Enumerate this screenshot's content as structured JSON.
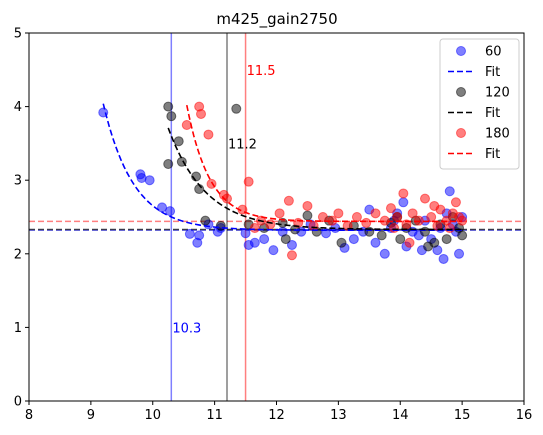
{
  "chart_data": {
    "type": "scatter",
    "title": "m425_gain2750",
    "xlabel": "",
    "ylabel": "",
    "xlim": [
      8,
      16
    ],
    "ylim": [
      0,
      5
    ],
    "xticks": [
      "8",
      "9",
      "10",
      "11",
      "12",
      "13",
      "14",
      "15",
      "16"
    ],
    "yticks": [
      "0",
      "1",
      "2",
      "3",
      "4",
      "5"
    ],
    "grid": false,
    "legend_position": "top-right",
    "series": [
      {
        "name": "60",
        "color": "#0000ff",
        "fit_label": "Fit",
        "threshold_x": 10.3,
        "threshold_label": "10.3",
        "baseline_y": 2.32,
        "fit_curve": {
          "x_start": 9.2,
          "x_end": 15.0,
          "a": 1.72,
          "k": 2.05,
          "x0": 9.2
        },
        "points": [
          [
            9.2,
            3.92
          ],
          [
            9.8,
            3.08
          ],
          [
            9.82,
            3.03
          ],
          [
            9.95,
            3.0
          ],
          [
            10.15,
            2.63
          ],
          [
            10.28,
            2.58
          ],
          [
            10.6,
            2.27
          ],
          [
            10.72,
            2.15
          ],
          [
            10.75,
            2.25
          ],
          [
            10.9,
            2.4
          ],
          [
            11.05,
            2.3
          ],
          [
            11.1,
            2.35
          ],
          [
            11.5,
            2.28
          ],
          [
            11.55,
            2.12
          ],
          [
            11.65,
            2.15
          ],
          [
            11.8,
            2.2
          ],
          [
            11.95,
            2.05
          ],
          [
            12.1,
            2.3
          ],
          [
            12.25,
            2.12
          ],
          [
            12.4,
            2.3
          ],
          [
            12.55,
            2.4
          ],
          [
            12.8,
            2.28
          ],
          [
            12.95,
            2.35
          ],
          [
            13.1,
            2.08
          ],
          [
            13.25,
            2.2
          ],
          [
            13.4,
            2.3
          ],
          [
            13.6,
            2.15
          ],
          [
            13.75,
            2.0
          ],
          [
            13.85,
            2.35
          ],
          [
            13.95,
            2.55
          ],
          [
            14.05,
            2.7
          ],
          [
            14.1,
            2.1
          ],
          [
            14.2,
            2.3
          ],
          [
            14.3,
            2.25
          ],
          [
            14.4,
            2.45
          ],
          [
            14.5,
            2.2
          ],
          [
            14.6,
            2.05
          ],
          [
            14.65,
            2.35
          ],
          [
            14.7,
            1.93
          ],
          [
            14.75,
            2.55
          ],
          [
            14.8,
            2.85
          ],
          [
            14.85,
            2.4
          ],
          [
            14.9,
            2.3
          ],
          [
            14.95,
            2.0
          ],
          [
            15.0,
            2.5
          ],
          [
            13.5,
            2.6
          ],
          [
            13.9,
            2.45
          ],
          [
            14.35,
            2.05
          ]
        ]
      },
      {
        "name": "120",
        "color": "#000000",
        "fit_label": "Fit",
        "threshold_x": 11.2,
        "threshold_label": "11.2",
        "baseline_y": 2.33,
        "fit_curve": {
          "x_start": 10.25,
          "x_end": 15.0,
          "a": 1.38,
          "k": 1.65,
          "x0": 10.25
        },
        "points": [
          [
            10.25,
            4.0
          ],
          [
            10.3,
            3.87
          ],
          [
            10.42,
            3.53
          ],
          [
            10.25,
            3.22
          ],
          [
            10.47,
            3.25
          ],
          [
            10.7,
            3.05
          ],
          [
            10.75,
            2.88
          ],
          [
            10.85,
            2.45
          ],
          [
            11.35,
            3.97
          ],
          [
            11.1,
            2.38
          ],
          [
            11.55,
            2.4
          ],
          [
            11.8,
            2.35
          ],
          [
            12.1,
            2.42
          ],
          [
            12.3,
            2.33
          ],
          [
            12.5,
            2.52
          ],
          [
            12.65,
            2.3
          ],
          [
            12.85,
            2.45
          ],
          [
            13.05,
            2.15
          ],
          [
            13.25,
            2.38
          ],
          [
            13.5,
            2.3
          ],
          [
            13.7,
            2.25
          ],
          [
            13.85,
            2.42
          ],
          [
            14.0,
            2.2
          ],
          [
            14.1,
            2.35
          ],
          [
            14.25,
            2.45
          ],
          [
            14.4,
            2.3
          ],
          [
            14.55,
            2.15
          ],
          [
            14.65,
            2.4
          ],
          [
            14.75,
            2.2
          ],
          [
            14.85,
            2.5
          ],
          [
            14.95,
            2.35
          ],
          [
            15.0,
            2.25
          ],
          [
            12.15,
            2.2
          ],
          [
            13.95,
            2.5
          ],
          [
            14.45,
            2.1
          ]
        ]
      },
      {
        "name": "180",
        "color": "#ff0000",
        "fit_label": "Fit",
        "threshold_x": 11.5,
        "threshold_label": "11.5",
        "baseline_y": 2.44,
        "fit_curve": {
          "x_start": 10.55,
          "x_end": 15.0,
          "a": 1.58,
          "k": 2.7,
          "x0": 10.55
        },
        "points": [
          [
            10.75,
            4.0
          ],
          [
            10.78,
            3.9
          ],
          [
            10.9,
            3.62
          ],
          [
            10.55,
            3.75
          ],
          [
            10.95,
            2.95
          ],
          [
            11.15,
            2.8
          ],
          [
            11.2,
            2.75
          ],
          [
            11.45,
            2.6
          ],
          [
            11.55,
            2.98
          ],
          [
            11.65,
            2.35
          ],
          [
            11.75,
            2.45
          ],
          [
            11.9,
            2.4
          ],
          [
            12.05,
            2.55
          ],
          [
            12.2,
            2.72
          ],
          [
            12.25,
            1.98
          ],
          [
            12.35,
            2.42
          ],
          [
            12.5,
            2.65
          ],
          [
            12.6,
            2.38
          ],
          [
            12.75,
            2.5
          ],
          [
            12.9,
            2.45
          ],
          [
            13.0,
            2.55
          ],
          [
            13.15,
            2.38
          ],
          [
            13.3,
            2.5
          ],
          [
            13.45,
            2.42
          ],
          [
            13.6,
            2.55
          ],
          [
            13.75,
            2.45
          ],
          [
            13.85,
            2.62
          ],
          [
            13.95,
            2.5
          ],
          [
            14.05,
            2.82
          ],
          [
            14.1,
            2.4
          ],
          [
            14.2,
            2.55
          ],
          [
            14.3,
            2.45
          ],
          [
            14.4,
            2.75
          ],
          [
            14.5,
            2.5
          ],
          [
            14.6,
            2.38
          ],
          [
            14.65,
            2.6
          ],
          [
            14.75,
            2.45
          ],
          [
            14.85,
            2.55
          ],
          [
            14.9,
            2.7
          ],
          [
            14.95,
            2.5
          ],
          [
            15.0,
            2.45
          ],
          [
            14.15,
            2.15
          ],
          [
            13.9,
            2.35
          ],
          [
            14.55,
            2.65
          ],
          [
            14.8,
            2.35
          ]
        ]
      }
    ]
  }
}
